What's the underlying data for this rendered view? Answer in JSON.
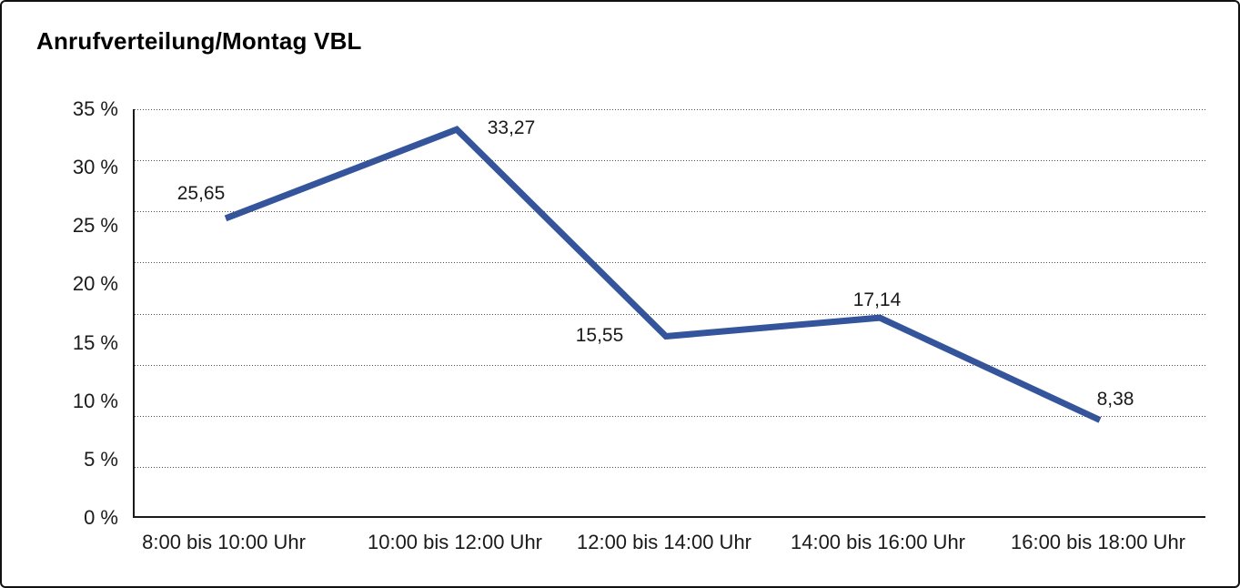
{
  "window": {
    "title": "Anrufverteilung/Montag VBL"
  },
  "chart_data": {
    "type": "line",
    "title": "Anrufverteilung/Montag VBL",
    "categories": [
      "8:00 bis 10:00 Uhr",
      "10:00 bis 12:00 Uhr",
      "12:00 bis 14:00 Uhr",
      "14:00 bis 16:00 Uhr",
      "16:00 bis 18:00 Uhr"
    ],
    "values": [
      25.65,
      33.27,
      15.55,
      17.14,
      8.38
    ],
    "point_labels": [
      "25,65",
      "33,27",
      "15,55",
      "17,14",
      "8,38"
    ],
    "y_ticks": [
      "35 %",
      "30 %",
      "25 %",
      "20 %",
      "15 %",
      "10 %",
      "5 %",
      "0 %"
    ],
    "ylim": [
      0,
      35
    ],
    "xlabel": "",
    "ylabel": "",
    "grid": "horizontal-dotted",
    "legend": "none",
    "line_color": "#34549B",
    "label_anchors": [
      "above-left",
      "right",
      "left",
      "above",
      "above-right"
    ]
  }
}
